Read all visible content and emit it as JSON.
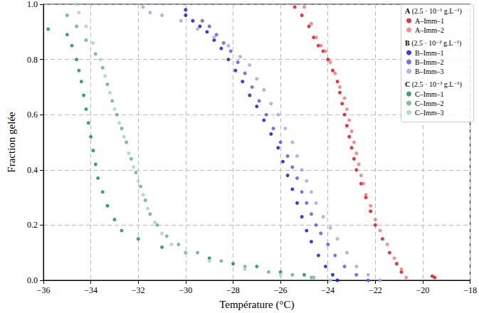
{
  "chart_data": {
    "type": "scatter",
    "x_label": "Température (°C)",
    "y_label": "Fraction gelée",
    "xlim": [
      -36,
      -18
    ],
    "xticks": [
      {
        "value": -36,
        "label": "−36"
      },
      {
        "value": -34,
        "label": "−34"
      },
      {
        "value": -32,
        "label": "−32"
      },
      {
        "value": -30,
        "label": "−30"
      },
      {
        "value": -28,
        "label": "−28"
      },
      {
        "value": -26,
        "label": "−26"
      },
      {
        "value": -24,
        "label": "−24"
      },
      {
        "value": -22,
        "label": "−22"
      },
      {
        "value": -20,
        "label": "−20"
      },
      {
        "value": -18,
        "label": "−18"
      }
    ],
    "ylim": [
      0,
      1
    ],
    "yticks": [
      {
        "value": 0,
        "label": "0.0"
      },
      {
        "value": 0.2,
        "label": "0.2"
      },
      {
        "value": 0.4,
        "label": "0.4"
      },
      {
        "value": 0.6,
        "label": "0.6"
      },
      {
        "value": 0.8,
        "label": "0.8"
      },
      {
        "value": 1,
        "label": "1.0"
      }
    ],
    "grid": true,
    "legend": "upper right",
    "marker": "circle",
    "legend_groups": [
      {
        "name": "A",
        "concentration": "(2.5 · 10⁻¹ g.L⁻¹)",
        "series": [
          "A–Imm–1",
          "A–Imm–2"
        ]
      },
      {
        "name": "B",
        "concentration": "(2.5 · 10⁻² g.L⁻¹)",
        "series": [
          "B–Imm–1",
          "B–Imm–2",
          "B–Imm–3"
        ]
      },
      {
        "name": "C",
        "concentration": "(2.5 · 10⁻³ g.L⁻¹)",
        "series": [
          "C–Imm–1",
          "C–Imm–2",
          "C–Imm–3"
        ]
      }
    ],
    "series": [
      {
        "name": "A–Imm–1",
        "color": "#e5000d",
        "x": [
          -19.5,
          -19.6,
          -20.9,
          -21.1,
          -21.4,
          -21.7,
          -22.0,
          -22.2,
          -22.4,
          -22.6,
          -22.8,
          -22.9,
          -23.0,
          -23.1,
          -23.2,
          -23.3,
          -23.4,
          -23.5,
          -23.6,
          -23.8,
          -24.0,
          -24.2,
          -24.4,
          -24.6,
          -24.8,
          -25.1,
          -25.4
        ],
        "values": [
          0.01,
          0.015,
          0.03,
          0.06,
          0.1,
          0.15,
          0.2,
          0.25,
          0.3,
          0.35,
          0.4,
          0.44,
          0.48,
          0.52,
          0.56,
          0.6,
          0.64,
          0.68,
          0.72,
          0.76,
          0.8,
          0.83,
          0.85,
          0.88,
          0.92,
          0.96,
          0.99
        ]
      },
      {
        "name": "A–Imm–2",
        "color": "#f07373",
        "x": [
          -20.7,
          -20.9,
          -21.2,
          -21.5,
          -21.8,
          -22.0,
          -22.2,
          -22.4,
          -22.5,
          -22.6,
          -22.7,
          -22.8,
          -22.9,
          -23.0,
          -23.1,
          -23.2,
          -23.3,
          -23.5,
          -23.7,
          -23.9,
          -24.1,
          -24.3,
          -24.5,
          -24.7,
          -25.0
        ],
        "values": [
          0.01,
          0.04,
          0.08,
          0.13,
          0.18,
          0.22,
          0.27,
          0.31,
          0.35,
          0.38,
          0.42,
          0.46,
          0.5,
          0.54,
          0.58,
          0.62,
          0.66,
          0.7,
          0.75,
          0.79,
          0.83,
          0.85,
          0.88,
          0.93,
          0.99
        ]
      },
      {
        "name": "B–Imm–1",
        "color": "#0a0ad8",
        "x": [
          -23.6,
          -23.8,
          -24.1,
          -24.4,
          -24.7,
          -24.9,
          -25.1,
          -25.3,
          -25.5,
          -25.7,
          -25.9,
          -26.1,
          -26.4,
          -26.7,
          -27.0,
          -27.3,
          -27.6,
          -27.9,
          -28.2,
          -28.5,
          -28.8,
          -29.1,
          -29.4,
          -29.7,
          -30.0,
          -30.0
        ],
        "values": [
          0.0,
          0.02,
          0.05,
          0.09,
          0.14,
          0.18,
          0.23,
          0.28,
          0.33,
          0.38,
          0.43,
          0.48,
          0.53,
          0.58,
          0.63,
          0.67,
          0.72,
          0.76,
          0.8,
          0.84,
          0.87,
          0.9,
          0.92,
          0.94,
          0.96,
          0.98
        ]
      },
      {
        "name": "B–Imm–2",
        "color": "#5050ec",
        "x": [
          -22.3,
          -22.8,
          -23.3,
          -23.7,
          -24.0,
          -24.3,
          -24.5,
          -24.7,
          -24.9,
          -25.1,
          -25.3,
          -25.5,
          -25.7,
          -26.0,
          -26.3,
          -26.6,
          -26.9,
          -27.2,
          -27.5,
          -27.8,
          -28.1,
          -28.4,
          -28.7,
          -29.0,
          -29.3
        ],
        "values": [
          0.0,
          0.02,
          0.05,
          0.09,
          0.13,
          0.17,
          0.2,
          0.24,
          0.28,
          0.32,
          0.37,
          0.41,
          0.45,
          0.5,
          0.55,
          0.6,
          0.65,
          0.7,
          0.75,
          0.79,
          0.83,
          0.86,
          0.89,
          0.92,
          0.94
        ]
      },
      {
        "name": "B–Imm–3",
        "color": "#9d9df4",
        "x": [
          -21.8,
          -22.3,
          -22.8,
          -23.2,
          -23.6,
          -23.9,
          -24.2,
          -24.5,
          -24.7,
          -24.9,
          -25.1,
          -25.3,
          -25.5,
          -25.8,
          -26.1,
          -26.4,
          -26.7,
          -27.0,
          -27.3,
          -27.7,
          -28.2,
          -28.8,
          -29.5,
          -30.2,
          -31.0,
          -31.5,
          -31.8
        ],
        "values": [
          0.0,
          0.02,
          0.05,
          0.1,
          0.15,
          0.19,
          0.23,
          0.28,
          0.32,
          0.36,
          0.4,
          0.45,
          0.5,
          0.55,
          0.6,
          0.64,
          0.69,
          0.73,
          0.78,
          0.81,
          0.85,
          0.88,
          0.91,
          0.94,
          0.96,
          0.97,
          0.99
        ]
      },
      {
        "name": "C–Imm–1",
        "color": "#0b8a4f",
        "x": [
          -24.6,
          -25.0,
          -26.0,
          -27.0,
          -28.0,
          -29.0,
          -30.0,
          -31.0,
          -32.0,
          -32.7,
          -33.0,
          -33.3,
          -33.5,
          -33.7,
          -33.8,
          -33.9,
          -34.0,
          -34.1,
          -34.2,
          -34.3,
          -34.4,
          -34.5,
          -34.6,
          -34.8,
          -35.0,
          -35.8
        ],
        "values": [
          0.01,
          0.02,
          0.03,
          0.05,
          0.06,
          0.08,
          0.1,
          0.12,
          0.15,
          0.18,
          0.22,
          0.27,
          0.32,
          0.37,
          0.42,
          0.47,
          0.52,
          0.57,
          0.62,
          0.67,
          0.72,
          0.76,
          0.8,
          0.85,
          0.89,
          0.91
        ]
      },
      {
        "name": "C–Imm–2",
        "color": "#5aae84",
        "x": [
          -24.7,
          -25.5,
          -26.5,
          -27.5,
          -28.5,
          -29.5,
          -30.3,
          -30.8,
          -31.2,
          -31.5,
          -31.7,
          -31.9,
          -32.1,
          -32.3,
          -32.5,
          -32.7,
          -32.9,
          -33.1,
          -33.3,
          -33.5,
          -33.8,
          -34.2,
          -34.6,
          -35.0
        ],
        "values": [
          0.01,
          0.02,
          0.03,
          0.05,
          0.07,
          0.1,
          0.13,
          0.16,
          0.2,
          0.24,
          0.29,
          0.34,
          0.39,
          0.44,
          0.5,
          0.55,
          0.6,
          0.65,
          0.71,
          0.77,
          0.82,
          0.87,
          0.92,
          0.96
        ]
      },
      {
        "name": "C–Imm–3",
        "color": "#9fd4b6",
        "x": [
          -23.9,
          -24.6,
          -26.0,
          -27.5,
          -29.0,
          -30.0,
          -30.6,
          -31.0,
          -31.3,
          -31.6,
          -31.8,
          -32.0,
          -32.2,
          -32.4,
          -32.6,
          -32.8,
          -33.0,
          -33.2,
          -33.4,
          -33.6,
          -33.9,
          -34.2,
          -34.5,
          -34.6
        ],
        "values": [
          0.0,
          0.01,
          0.02,
          0.04,
          0.07,
          0.1,
          0.13,
          0.17,
          0.21,
          0.26,
          0.31,
          0.36,
          0.41,
          0.46,
          0.52,
          0.57,
          0.62,
          0.68,
          0.74,
          0.8,
          0.86,
          0.92,
          0.97,
          1.0
        ]
      }
    ]
  }
}
